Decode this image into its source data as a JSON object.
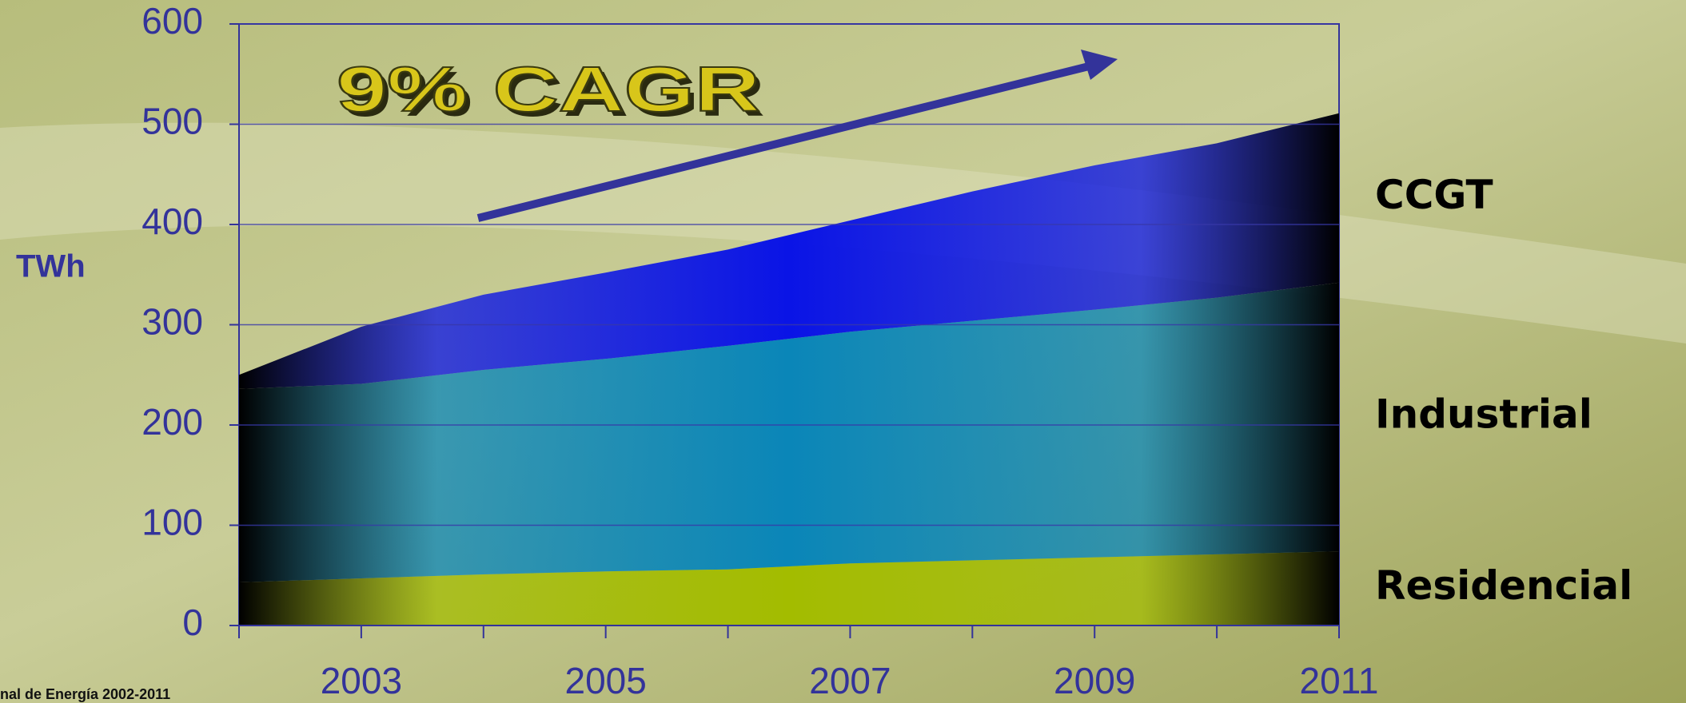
{
  "chart_data": {
    "type": "stacked_area",
    "y_label": "TWh",
    "annotation": "9% CAGR",
    "source": "nal de Energía 2002-2011",
    "x": [
      2002,
      2003,
      2004,
      2005,
      2006,
      2007,
      2008,
      2009,
      2010,
      2011
    ],
    "xlim": [
      2002,
      2011
    ],
    "xticks": [
      2003,
      2005,
      2007,
      2009,
      2011
    ],
    "ylim": [
      0,
      600
    ],
    "yticks": [
      0,
      100,
      200,
      300,
      400,
      500,
      600
    ],
    "grid": true,
    "series": [
      {
        "name": "Residencial",
        "color": "#a3bc00",
        "values": [
          43,
          47,
          51,
          54,
          56,
          62,
          65,
          68,
          71,
          74
        ]
      },
      {
        "name": "Industrial",
        "color": "#0a86b8",
        "values": [
          193,
          194,
          204,
          212,
          223,
          231,
          239,
          247,
          256,
          268
        ]
      },
      {
        "name": "CCGT",
        "color": "#0a14e6",
        "values": [
          14,
          57,
          75,
          86,
          96,
          111,
          129,
          144,
          154,
          169
        ]
      }
    ]
  }
}
